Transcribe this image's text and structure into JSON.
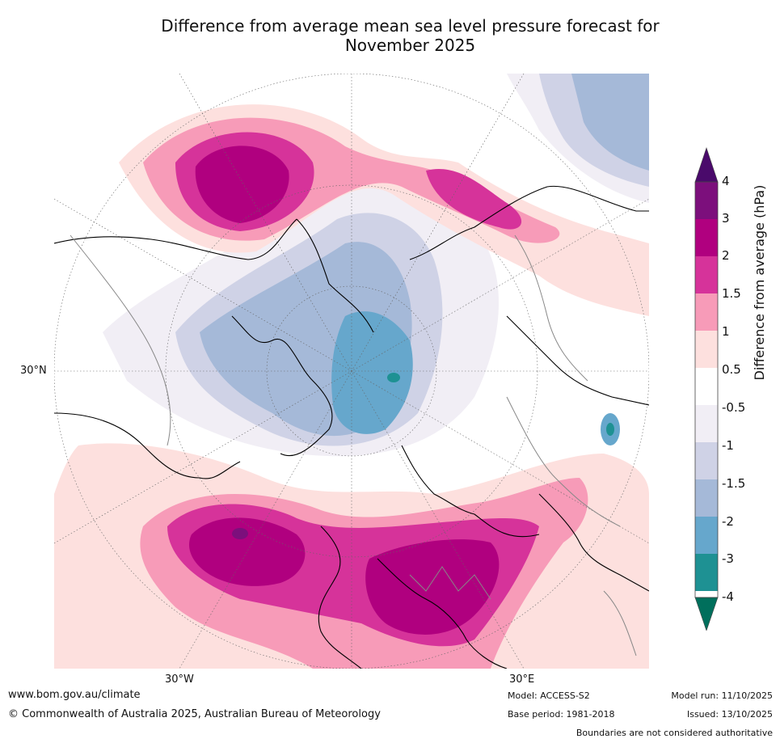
{
  "title": {
    "line1": "Difference from average mean sea level pressure forecast for",
    "line2": "November 2025"
  },
  "map": {
    "projection": "north-polar-stereographic",
    "lat_label": "30°N",
    "lon_labels": {
      "west": "30°W",
      "east": "30°E"
    }
  },
  "colorbar": {
    "title": "Difference from average (hPa)",
    "ticks": [
      "4",
      "3",
      "2",
      "1.5",
      "1",
      "0.5",
      "-0.5",
      "-1",
      "-1.5",
      "-2",
      "-3",
      "-4"
    ],
    "colors": {
      "over": "#4a0a6b",
      "b3_4": "#7c0f7c",
      "b2_3": "#b0007f",
      "b15_2": "#d6339a",
      "b1_15": "#f79bb8",
      "b05_1": "#fde0de",
      "b_neutral": "#ffffff",
      "bm1_m05": "#f1eef5",
      "bm15_m1": "#cfd2e6",
      "bm2_m15": "#a5b9d8",
      "bm3_m2": "#66a7cc",
      "bm4_m3": "#1e9193",
      "under": "#006f5c"
    }
  },
  "footer": {
    "url": "www.bom.gov.au/climate",
    "copyright": "© Commonwealth of Australia 2025, Australian Bureau of Meteorology",
    "model": "Model: ACCESS-S2",
    "base_period": "Base period: 1981-2018",
    "model_run": "Model run: 11/10/2025",
    "issued": "Issued: 13/10/2025",
    "disclaimer": "Boundaries are not considered authoritative"
  }
}
